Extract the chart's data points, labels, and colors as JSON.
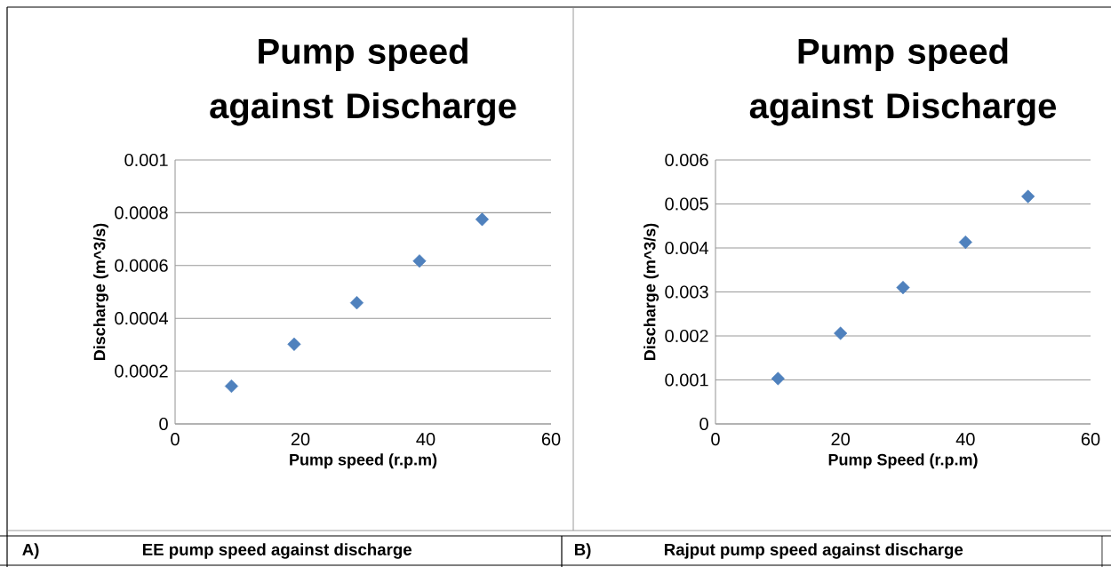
{
  "chart_data": [
    {
      "type": "scatter",
      "title": "Pump speed against Discharge",
      "xlabel": "Pump speed (r.p.m)",
      "ylabel": "Discharge (m^3/s)",
      "x": [
        9,
        19,
        29,
        39,
        49
      ],
      "values": [
        0.000143,
        0.000302,
        0.000459,
        0.000617,
        0.000775
      ],
      "color": "#4f81bd",
      "marker": "diamond",
      "grid": "y",
      "xlim": [
        0,
        60
      ],
      "xticks": [
        0,
        20,
        40,
        60
      ],
      "ylim": [
        0,
        0.001
      ],
      "yticks": [
        0,
        0.0002,
        0.0004,
        0.0006,
        0.0008,
        0.001
      ],
      "annotations": [
        "A)",
        "EE pump speed against discharge"
      ]
    },
    {
      "type": "scatter",
      "title": "Pump speed  against Discharge",
      "xlabel": "Pump Speed (r.p.m)",
      "ylabel": "Discharge (m^3/s)",
      "x": [
        10,
        20,
        30,
        40,
        50
      ],
      "values": [
        0.00103,
        0.00206,
        0.0031,
        0.00413,
        0.00517
      ],
      "color": "#4f81bd",
      "marker": "diamond",
      "grid": "y",
      "xlim": [
        0,
        60
      ],
      "xticks": [
        0,
        20,
        40,
        60
      ],
      "ylim": [
        0,
        0.006
      ],
      "yticks": [
        0,
        0.001,
        0.002,
        0.003,
        0.004,
        0.005,
        0.006
      ],
      "annotations": [
        "B)",
        "Rajput pump speed against discharge"
      ]
    }
  ]
}
